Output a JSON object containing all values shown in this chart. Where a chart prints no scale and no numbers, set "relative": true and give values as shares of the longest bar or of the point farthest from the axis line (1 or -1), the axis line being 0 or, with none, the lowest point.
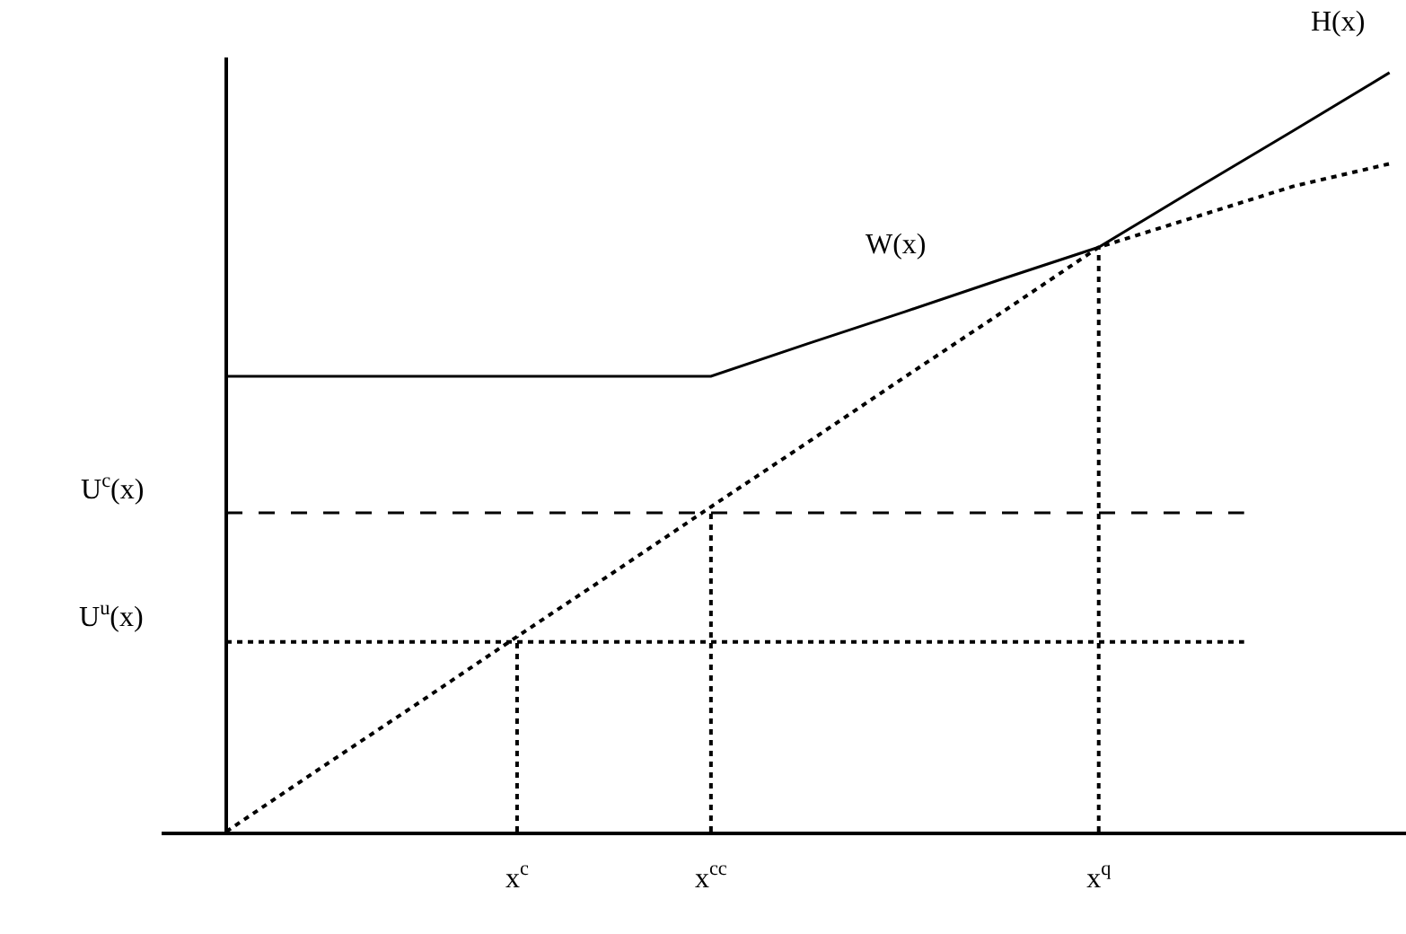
{
  "chart_data": {
    "type": "line",
    "relative": true,
    "categories": [
      null,
      null,
      null,
      "x$^{c}$",
      null,
      "x$^{cc}$",
      null,
      null,
      null,
      "x$^{q}$",
      null,
      null,
      null
    ],
    "series": [
      {
        "name": "W(x)",
        "color": "#000000",
        "line_style": "solid",
        "values": [
          0.6,
          0.6,
          0.6,
          0.6,
          0.6,
          0.6,
          0.643,
          0.685,
          0.728,
          0.77,
          0.847,
          0.923,
          1
        ]
      },
      {
        "color": "#000000",
        "line_style": "dotted",
        "values": [
          0,
          0.086,
          0.171,
          0.257,
          0.342,
          0.428,
          0.513,
          0.599,
          0.684,
          0.77,
          0.81,
          0.85,
          0.88
        ]
      }
    ],
    "annotations": [
      "H(x)"
    ],
    "ref_lines": [
      {
        "axis": "y",
        "value": 0.42,
        "label": "U$^{c}$(x)",
        "line_style": "dashed",
        "color": "#000000"
      },
      {
        "axis": "y",
        "value": 0.25,
        "label": "U$^{u}$(x)",
        "line_style": "dotted",
        "color": "#000000"
      },
      {
        "axis": "x",
        "value": "x$^{c}$",
        "line_style": "dotted",
        "color": "#000000"
      },
      {
        "axis": "x",
        "value": "x$^{cc}$",
        "line_style": "dotted",
        "color": "#000000"
      },
      {
        "axis": "x",
        "value": "x$^{q}$",
        "line_style": "dotted",
        "color": "#000000"
      }
    ],
    "grid": false,
    "legend": false,
    "marker": "none"
  }
}
